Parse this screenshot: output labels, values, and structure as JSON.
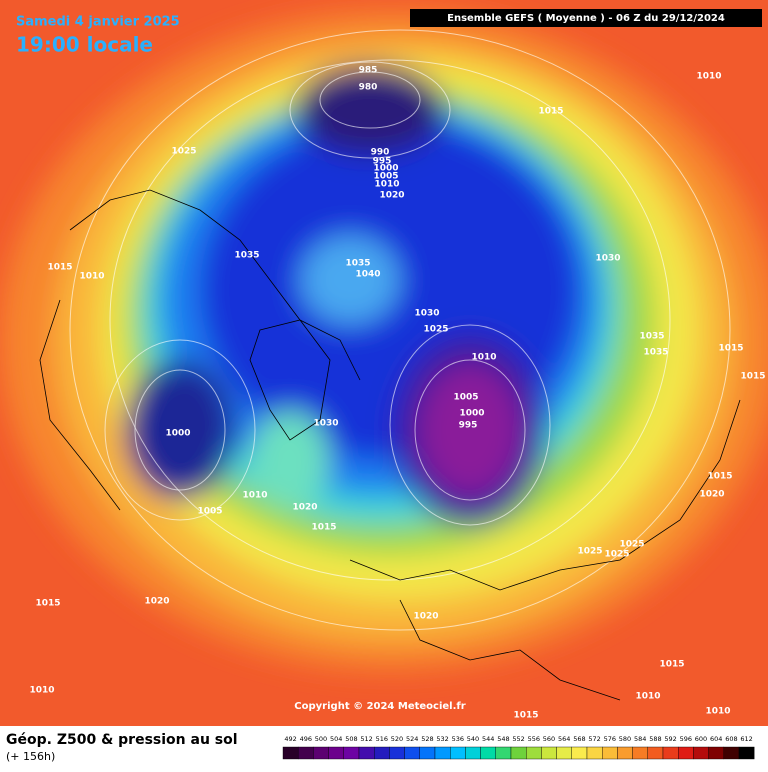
{
  "header": {
    "date": "Samedi 4 janvier 2025",
    "time": "19:00 locale",
    "model": "Ensemble GEFS  ( Moyenne )  -  06 Z du 29/12/2024"
  },
  "map": {
    "pressure_labels": [
      985,
      980,
      1015,
      1010,
      1025,
      990,
      995,
      1000,
      1005,
      1010,
      1020,
      1035,
      1035,
      1040,
      1030,
      1015,
      1010,
      1030,
      1025,
      1035,
      1035,
      1015,
      1010,
      1015,
      1000,
      1030,
      1005,
      1000,
      995,
      1015,
      1020,
      1010,
      1020,
      1005,
      1015,
      1025,
      1025,
      1025,
      1015,
      1020,
      1020,
      1015,
      1010,
      1010,
      1015,
      1010
    ]
  },
  "copyright": "Copyright © 2024 Meteociel.fr",
  "footer": {
    "title": "Géop. Z500 & pression au sol",
    "lead": "(+ 156h)"
  },
  "legend": {
    "levels": [
      492,
      496,
      500,
      504,
      508,
      512,
      516,
      520,
      524,
      528,
      532,
      536,
      540,
      544,
      548,
      552,
      556,
      560,
      564,
      568,
      572,
      576,
      580,
      584,
      588,
      592,
      596,
      600,
      604,
      608,
      612
    ]
  }
}
